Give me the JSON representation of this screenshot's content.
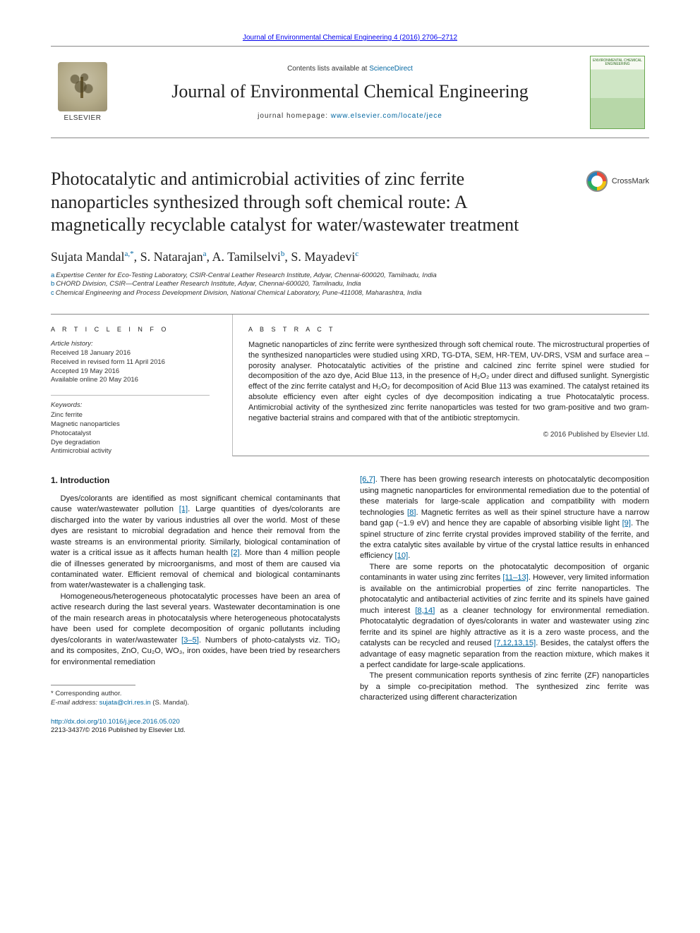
{
  "top_citation": "Journal of Environmental Chemical Engineering 4 (2016) 2706–2712",
  "header": {
    "contents_prefix": "Contents lists available at ",
    "contents_link": "ScienceDirect",
    "journal": "Journal of Environmental Chemical Engineering",
    "homepage_prefix": "journal homepage: ",
    "homepage_link": "www.elsevier.com/locate/jece",
    "elsevier_label": "ELSEVIER",
    "cover_caption": "ENVIRONMENTAL CHEMICAL ENGINEERING"
  },
  "crossmark_label": "CrossMark",
  "title": "Photocatalytic and antimicrobial activities of zinc ferrite nanoparticles synthesized through soft chemical route: A magnetically recyclable catalyst for water/wastewater treatment",
  "authors_html": "Sujata Mandal<sup>a,*</sup>, S. Natarajan<sup>a</sup>, A. Tamilselvi<sup>b</sup>, S. Mayadevi<sup>c</sup>",
  "authors": [
    {
      "name": "Sujata Mandal",
      "aff": "a,*"
    },
    {
      "name": "S. Natarajan",
      "aff": "a"
    },
    {
      "name": "A. Tamilselvi",
      "aff": "b"
    },
    {
      "name": "S. Mayadevi",
      "aff": "c"
    }
  ],
  "affiliations": [
    {
      "label": "a",
      "text": "Expertise Center for Eco-Testing Laboratory, CSIR-Central Leather Research Institute, Adyar, Chennai-600020, Tamilnadu, India"
    },
    {
      "label": "b",
      "text": "CHORD Division, CSIR—Central Leather Research Institute, Adyar, Chennai-600020, Tamilnadu, India"
    },
    {
      "label": "c",
      "text": "Chemical Engineering and Process Development Division, National Chemical Laboratory, Pune-411008, Maharashtra, India"
    }
  ],
  "info": {
    "heading": "A R T I C L E   I N F O",
    "history_label": "Article history:",
    "history": [
      "Received 18 January 2016",
      "Received in revised form 11 April 2016",
      "Accepted 19 May 2016",
      "Available online 20 May 2016"
    ],
    "kw_label": "Keywords:",
    "keywords": [
      "Zinc ferrite",
      "Magnetic nanoparticles",
      "Photocatalyst",
      "Dye degradation",
      "Antimicrobial activity"
    ]
  },
  "abstract": {
    "heading": "A B S T R A C T",
    "text": "Magnetic nanoparticles of zinc ferrite were synthesized through soft chemical route. The microstructural properties of the synthesized nanoparticles were studied using XRD, TG-DTA, SEM, HR-TEM, UV-DRS, VSM and surface area – porosity analyser. Photocatalytic activities of the pristine and calcined zinc ferrite spinel were studied for decomposition of the azo dye, Acid Blue 113, in the presence of H₂O₂ under direct and diffused sunlight. Synergistic effect of the zinc ferrite catalyst and H₂O₂ for decomposition of Acid Blue 113 was examined. The catalyst retained its absolute efficiency even after eight cycles of dye decomposition indicating a true Photocatalytic process. Antimicrobial activity of the synthesized zinc ferrite nanoparticles was tested for two gram-positive and two gram-negative bacterial strains and compared with that of the antibiotic streptomycin.",
    "copyright": "© 2016 Published by Elsevier Ltd."
  },
  "section1_heading": "1. Introduction",
  "body": {
    "left": {
      "p1a": "Dyes/colorants are identified as most significant chemical contaminants that cause water/wastewater pollution ",
      "r1": "[1]",
      "p1b": ". Large quantities of dyes/colorants are discharged into the water by various industries all over the world. Most of these dyes are resistant to microbial degradation and hence their removal from the waste streams is an environmental priority. Similarly, biological contamination of water is a critical issue as it affects human health ",
      "r2": "[2]",
      "p1c": ". More than 4 million people die of illnesses generated by microorganisms, and most of them are caused via contaminated water. Efficient removal of chemical and biological contaminants from water/wastewater is a challenging task.",
      "p2a": "Homogeneous/heterogeneous photocatalytic processes have been an area of active research during the last several years. Wastewater decontamination is one of the main research areas in photocatalysis where heterogeneous photocatalysts have been used for complete decomposition of organic pollutants including dyes/colorants in water/wastewater ",
      "r3": "[3–5]",
      "p2b": ". Numbers of photo-catalysts viz. TiO₂ and its composites, ZnO, Cu₂O, WO₃, iron oxides, have been tried by researchers for environmental remediation"
    },
    "right": {
      "r4": "[6,7]",
      "p1a": ". There has been growing research interests on photocatalytic decomposition using magnetic nanoparticles for environmental remediation due to the potential of these materials for large-scale application and compatibility with modern technologies ",
      "r5": "[8]",
      "p1b": ". Magnetic ferrites as well as their spinel structure have a narrow band gap (~1.9 eV) and hence they are capable of absorbing visible light ",
      "r6": "[9]",
      "p1c": ". The spinel structure of zinc ferrite crystal provides improved stability of the ferrite, and the extra catalytic sites available by virtue of the crystal lattice results in enhanced efficiency ",
      "r7": "[10]",
      "p1d": ".",
      "p2a": "There are some reports on the photocatalytic decomposition of organic contaminants in water using zinc ferrites ",
      "r8": "[11–13]",
      "p2b": ". However, very limited information is available on the antimicrobial properties of zinc ferrite nanoparticles. The photocatalytic and antibacterial activities of zinc ferrite and its spinels have gained much interest ",
      "r9": "[8,14]",
      "p2c": " as a cleaner technology for environmental remediation. Photocatalytic degradation of dyes/colorants in water and wastewater using zinc ferrite and its spinel are highly attractive as it is a zero waste process, and the catalysts can be recycled and reused ",
      "r10": "[7,12,13,15]",
      "p2d": ". Besides, the catalyst offers the advantage of easy magnetic separation from the reaction mixture, which makes it a perfect candidate for large-scale applications.",
      "p3": "The present communication reports synthesis of zinc ferrite (ZF) nanoparticles by a simple co-precipitation method. The synthesized zinc ferrite was characterized using different characterization"
    }
  },
  "footnotes": {
    "corresponding": "* Corresponding author.",
    "email_label": "E-mail address: ",
    "email": "sujata@clri.res.in",
    "email_attrib": " (S. Mandal)."
  },
  "doi": {
    "link": "http://dx.doi.org/10.1016/j.jece.2016.05.020",
    "issn_line": "2213-3437/© 2016 Published by Elsevier Ltd."
  },
  "colors": {
    "link": "#0066a1",
    "text": "#1a1a1a",
    "rule": "#888888"
  }
}
